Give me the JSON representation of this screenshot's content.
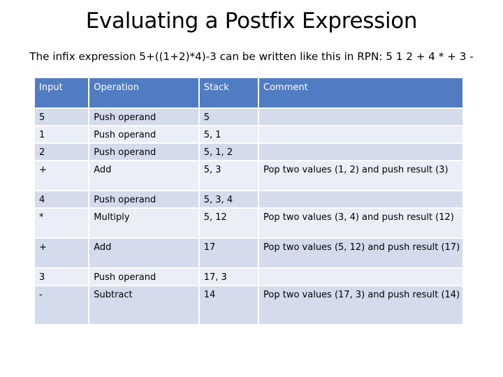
{
  "slide": {
    "title": "Evaluating a Postfix Expression",
    "subtitle": "The infix expression 5+((1+2)*4)-3 can be written like this in RPN: 5 1 2 + 4 * + 3 -"
  },
  "table": {
    "headers": [
      "Input",
      "Operation",
      "Stack",
      "Comment"
    ],
    "rows": [
      [
        "5",
        "Push operand",
        "5",
        ""
      ],
      [
        "1",
        "Push operand",
        "5, 1",
        ""
      ],
      [
        "2",
        "Push operand",
        "5, 1, 2",
        ""
      ],
      [
        "+",
        "Add",
        "5, 3",
        "Pop two values (1, 2) and push result (3)"
      ],
      [
        "4",
        "Push operand",
        "5, 3, 4",
        ""
      ],
      [
        "*",
        "Multiply",
        "5, 12",
        "Pop two values (3, 4) and push result (12)"
      ],
      [
        "+",
        "Add",
        "17",
        "Pop two values (5, 12) and push result (17)"
      ],
      [
        "3",
        "Push operand",
        "17, 3",
        ""
      ],
      [
        "-",
        "Subtract",
        "14",
        "Pop two values (17, 3) and push result (14)"
      ]
    ]
  },
  "colors": {
    "header_bg": "#4f7cc2",
    "row_odd": "#d3dbed",
    "row_even": "#eaeef7"
  }
}
